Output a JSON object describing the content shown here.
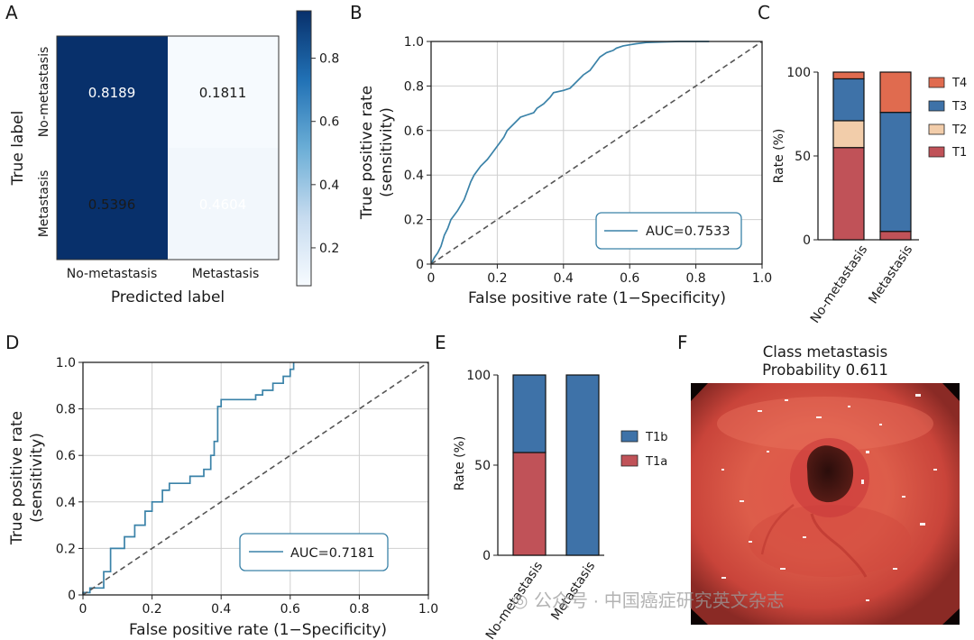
{
  "panel_labels": [
    "A",
    "B",
    "C",
    "D",
    "E",
    "F"
  ],
  "colors": {
    "heat_high": "#08306b",
    "heat_low": "#f7fbff",
    "roc_line": "#3a82a8",
    "diagonal": "#555555",
    "t1": "#c05258",
    "t2": "#f2cdaa",
    "t3": "#3e72a8",
    "t4": "#e06b4f"
  },
  "chart_data": [
    {
      "panel": "A",
      "type": "heatmap",
      "title": "",
      "xlabel": "Predicted label",
      "ylabel": "True label",
      "x_categories": [
        "No-metastasis",
        "Metastasis"
      ],
      "y_categories": [
        "No-metastasis",
        "Metastasis"
      ],
      "cell_labels": [
        [
          "0.8189",
          "0.1811"
        ],
        [
          "0.5396",
          "0.4604"
        ]
      ],
      "matrix": [
        [
          0.8189,
          0.1811
        ],
        [
          0.5396,
          0.4604
        ]
      ],
      "colorbar": {
        "range": [
          0.08,
          0.95
        ],
        "ticks": [
          "0.2",
          "0.4",
          "0.6",
          "0.8"
        ]
      }
    },
    {
      "panel": "B",
      "type": "line",
      "xlabel": "False positive rate (1−Specificity)",
      "ylabel_lines": [
        "True positive rate",
        "(sensitivity)"
      ],
      "xlim": [
        0,
        1
      ],
      "ylim": [
        0,
        1
      ],
      "xticks": [
        "0",
        "0.2",
        "0.4",
        "0.6",
        "0.8",
        "1.0"
      ],
      "yticks": [
        "0",
        "0.2",
        "0.4",
        "0.6",
        "0.8",
        "1.0"
      ],
      "grid": true,
      "legend": "AUC=0.7533",
      "legend_position": "bottom-right",
      "series": [
        {
          "name": "ROC",
          "x": [
            0,
            0.01,
            0.02,
            0.03,
            0.04,
            0.05,
            0.06,
            0.08,
            0.1,
            0.11,
            0.12,
            0.13,
            0.15,
            0.17,
            0.18,
            0.2,
            0.22,
            0.23,
            0.25,
            0.27,
            0.29,
            0.31,
            0.32,
            0.34,
            0.36,
            0.37,
            0.4,
            0.42,
            0.44,
            0.46,
            0.48,
            0.49,
            0.5,
            0.51,
            0.53,
            0.55,
            0.56,
            0.58,
            0.6,
            0.62,
            0.65,
            0.7,
            0.75,
            0.8,
            0.84
          ],
          "y": [
            0,
            0.03,
            0.05,
            0.08,
            0.13,
            0.16,
            0.2,
            0.24,
            0.29,
            0.33,
            0.37,
            0.4,
            0.44,
            0.47,
            0.49,
            0.53,
            0.57,
            0.6,
            0.63,
            0.66,
            0.67,
            0.68,
            0.7,
            0.72,
            0.75,
            0.77,
            0.78,
            0.79,
            0.82,
            0.85,
            0.87,
            0.89,
            0.91,
            0.93,
            0.95,
            0.96,
            0.97,
            0.98,
            0.985,
            0.99,
            0.995,
            0.998,
            1.0,
            1.0,
            1.0
          ]
        },
        {
          "name": "chance",
          "x": [
            0,
            1
          ],
          "y": [
            0,
            1
          ],
          "style": "dashed"
        }
      ]
    },
    {
      "panel": "C",
      "type": "bar",
      "stacked": true,
      "ylabel": "Rate (%)",
      "ylim": [
        0,
        100
      ],
      "yticks": [
        "0",
        "50",
        "100"
      ],
      "categories": [
        "No-metastasis",
        "Metastasis"
      ],
      "legend_position": "right",
      "series": [
        {
          "name": "T1",
          "values": [
            55,
            5
          ]
        },
        {
          "name": "T2",
          "values": [
            16,
            0
          ]
        },
        {
          "name": "T3",
          "values": [
            25,
            71
          ]
        },
        {
          "name": "T4",
          "values": [
            4,
            24
          ]
        }
      ]
    },
    {
      "panel": "D",
      "type": "line",
      "xlabel": "False positive rate (1−Specificity)",
      "ylabel_lines": [
        "True positive rate",
        "(sensitivity)"
      ],
      "xlim": [
        0,
        1
      ],
      "ylim": [
        0,
        1
      ],
      "xticks": [
        "0",
        "0.2",
        "0.4",
        "0.6",
        "0.8",
        "1.0"
      ],
      "yticks": [
        "0",
        "0.2",
        "0.4",
        "0.6",
        "0.8",
        "1.0"
      ],
      "grid": true,
      "legend": "AUC=0.7181",
      "legend_position": "bottom-right",
      "series": [
        {
          "name": "ROC",
          "x": [
            0,
            0,
            0.02,
            0.02,
            0.06,
            0.06,
            0.08,
            0.08,
            0.12,
            0.12,
            0.15,
            0.15,
            0.18,
            0.18,
            0.2,
            0.2,
            0.23,
            0.23,
            0.25,
            0.25,
            0.31,
            0.31,
            0.35,
            0.35,
            0.37,
            0.37,
            0.38,
            0.38,
            0.39,
            0.39,
            0.4,
            0.4,
            0.5,
            0.5,
            0.52,
            0.52,
            0.55,
            0.55,
            0.58,
            0.58,
            0.6,
            0.6,
            0.61,
            0.61
          ],
          "y": [
            0,
            0.01,
            0.01,
            0.03,
            0.03,
            0.1,
            0.1,
            0.2,
            0.2,
            0.25,
            0.25,
            0.3,
            0.3,
            0.36,
            0.36,
            0.4,
            0.4,
            0.45,
            0.45,
            0.48,
            0.48,
            0.51,
            0.51,
            0.54,
            0.54,
            0.6,
            0.6,
            0.66,
            0.66,
            0.81,
            0.81,
            0.84,
            0.84,
            0.86,
            0.86,
            0.88,
            0.88,
            0.91,
            0.91,
            0.94,
            0.94,
            0.97,
            0.97,
            1.0
          ]
        },
        {
          "name": "chance",
          "x": [
            0,
            1
          ],
          "y": [
            0,
            1
          ],
          "style": "dashed"
        }
      ]
    },
    {
      "panel": "E",
      "type": "bar",
      "stacked": true,
      "ylabel": "Rate (%)",
      "ylim": [
        0,
        100
      ],
      "yticks": [
        "0",
        "50",
        "100"
      ],
      "categories": [
        "No-metastasis",
        "Metastasis"
      ],
      "legend_position": "right",
      "series": [
        {
          "name": "T1a",
          "values": [
            57,
            0
          ]
        },
        {
          "name": "T1b",
          "values": [
            43,
            100
          ]
        }
      ]
    }
  ],
  "photo": {
    "panel": "F",
    "title_lines": [
      "Class metastasis",
      "Probability 0.611"
    ]
  },
  "watermark": "公众号 · 中国癌症研究英文杂志"
}
